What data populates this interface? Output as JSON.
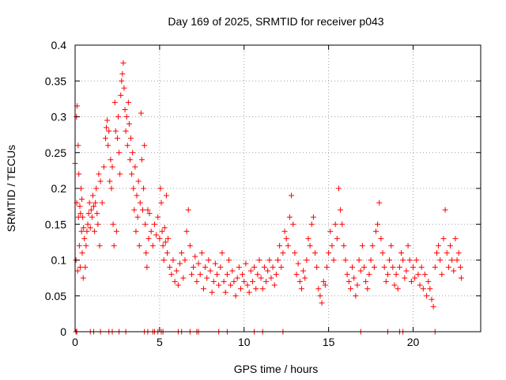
{
  "chart_data": {
    "type": "scatter",
    "title": "Day 169 of 2025, SRMTID for receiver p043",
    "xlabel": "GPS time / hours",
    "ylabel": "SRMTID / TECUs",
    "xlim": [
      0,
      24
    ],
    "ylim": [
      0,
      0.4
    ],
    "xticks": [
      0,
      5,
      10,
      15,
      20
    ],
    "xtick_labels": [
      "0",
      "5",
      "10",
      "15",
      "20"
    ],
    "yticks": [
      0,
      0.05,
      0.1,
      0.15,
      0.2,
      0.25,
      0.3,
      0.35,
      0.4
    ],
    "ytick_labels": [
      "0",
      "0.05",
      "0.1",
      "0.15",
      "0.2",
      "0.25",
      "0.3",
      "0.35",
      "0.4"
    ],
    "grid": true,
    "marker": "plus",
    "color": "#ff0000",
    "series": [
      {
        "name": "SRMTID",
        "points": [
          [
            0.0,
            0.235
          ],
          [
            0.05,
            0.1
          ],
          [
            0.08,
            0.3
          ],
          [
            0.1,
            0.18
          ],
          [
            0.12,
            0.315
          ],
          [
            0.15,
            0.085
          ],
          [
            0.18,
            0.26
          ],
          [
            0.2,
            0.16
          ],
          [
            0.22,
            0.22
          ],
          [
            0.25,
            0.12
          ],
          [
            0.28,
            0.175
          ],
          [
            0.3,
            0.09
          ],
          [
            0.32,
            0.165
          ],
          [
            0.35,
            0.2
          ],
          [
            0.38,
            0.14
          ],
          [
            0.4,
            0.185
          ],
          [
            0.42,
            0.11
          ],
          [
            0.45,
            0.16
          ],
          [
            0.48,
            0.075
          ],
          [
            0.5,
            0.145
          ],
          [
            0.55,
            0.13
          ],
          [
            0.6,
            0.09
          ],
          [
            0.65,
            0.12
          ],
          [
            0.7,
            0.14
          ],
          [
            0.75,
            0.15
          ],
          [
            0.8,
            0.165
          ],
          [
            0.85,
            0.18
          ],
          [
            0.9,
            0.145
          ],
          [
            0.95,
            0.17
          ],
          [
            1.0,
            0.16
          ],
          [
            1.05,
            0.19
          ],
          [
            1.1,
            0.175
          ],
          [
            1.15,
            0.14
          ],
          [
            1.2,
            0.18
          ],
          [
            1.25,
            0.2
          ],
          [
            1.3,
            0.165
          ],
          [
            1.35,
            0.15
          ],
          [
            1.4,
            0.22
          ],
          [
            1.45,
            0.12
          ],
          [
            1.5,
            0.21
          ],
          [
            1.6,
            0.18
          ],
          [
            1.7,
            0.23
          ],
          [
            1.8,
            0.27
          ],
          [
            1.85,
            0.285
          ],
          [
            1.9,
            0.295
          ],
          [
            1.95,
            0.26
          ],
          [
            2.0,
            0.28
          ],
          [
            2.05,
            0.21
          ],
          [
            2.1,
            0.24
          ],
          [
            2.15,
            0.2
          ],
          [
            2.2,
            0.23
          ],
          [
            2.25,
            0.15
          ],
          [
            2.3,
            0.12
          ],
          [
            2.35,
            0.32
          ],
          [
            2.4,
            0.28
          ],
          [
            2.45,
            0.14
          ],
          [
            2.5,
            0.27
          ],
          [
            2.55,
            0.3
          ],
          [
            2.6,
            0.25
          ],
          [
            2.65,
            0.22
          ],
          [
            2.7,
            0.33
          ],
          [
            2.75,
            0.35
          ],
          [
            2.8,
            0.36
          ],
          [
            2.85,
            0.375
          ],
          [
            2.9,
            0.34
          ],
          [
            2.95,
            0.31
          ],
          [
            3.0,
            0.28
          ],
          [
            3.05,
            0.3
          ],
          [
            3.1,
            0.26
          ],
          [
            3.15,
            0.32
          ],
          [
            3.2,
            0.29
          ],
          [
            3.25,
            0.24
          ],
          [
            3.3,
            0.27
          ],
          [
            3.35,
            0.22
          ],
          [
            3.4,
            0.25
          ],
          [
            3.45,
            0.2
          ],
          [
            3.5,
            0.17
          ],
          [
            3.55,
            0.23
          ],
          [
            3.6,
            0.14
          ],
          [
            3.65,
            0.19
          ],
          [
            3.7,
            0.16
          ],
          [
            3.75,
            0.21
          ],
          [
            3.8,
            0.12
          ],
          [
            3.85,
            0.18
          ],
          [
            3.9,
            0.305
          ],
          [
            3.95,
            0.24
          ],
          [
            4.0,
            0.17
          ],
          [
            4.05,
            0.2
          ],
          [
            4.1,
            0.26
          ],
          [
            4.15,
            0.15
          ],
          [
            4.2,
            0.11
          ],
          [
            4.25,
            0.09
          ],
          [
            4.3,
            0.17
          ],
          [
            4.35,
            0.13
          ],
          [
            4.4,
            0.165
          ],
          [
            4.5,
            0.14
          ],
          [
            4.6,
            0.12
          ],
          [
            4.7,
            0.15
          ],
          [
            4.8,
            0.135
          ],
          [
            4.9,
            0.16
          ],
          [
            5.0,
            0.13
          ],
          [
            5.05,
            0.2
          ],
          [
            5.1,
            0.18
          ],
          [
            5.15,
            0.14
          ],
          [
            5.2,
            0.12
          ],
          [
            5.25,
            0.1
          ],
          [
            5.3,
            0.145
          ],
          [
            5.35,
            0.125
          ],
          [
            5.4,
            0.19
          ],
          [
            5.45,
            0.11
          ],
          [
            5.5,
            0.13
          ],
          [
            5.6,
            0.09
          ],
          [
            5.7,
            0.08
          ],
          [
            5.8,
            0.1
          ],
          [
            5.9,
            0.07
          ],
          [
            6.0,
            0.085
          ],
          [
            6.1,
            0.065
          ],
          [
            6.2,
            0.095
          ],
          [
            6.3,
            0.11
          ],
          [
            6.4,
            0.075
          ],
          [
            6.5,
            0.1
          ],
          [
            6.6,
            0.14
          ],
          [
            6.7,
            0.17
          ],
          [
            6.8,
            0.12
          ],
          [
            6.9,
            0.08
          ],
          [
            7.0,
            0.09
          ],
          [
            7.1,
            0.105
          ],
          [
            7.2,
            0.07
          ],
          [
            7.3,
            0.095
          ],
          [
            7.4,
            0.08
          ],
          [
            7.5,
            0.11
          ],
          [
            7.6,
            0.06
          ],
          [
            7.7,
            0.09
          ],
          [
            7.8,
            0.075
          ],
          [
            7.9,
            0.1
          ],
          [
            8.0,
            0.085
          ],
          [
            8.1,
            0.055
          ],
          [
            8.2,
            0.07
          ],
          [
            8.3,
            0.095
          ],
          [
            8.4,
            0.08
          ],
          [
            8.5,
            0.065
          ],
          [
            8.6,
            0.09
          ],
          [
            8.7,
            0.11
          ],
          [
            8.8,
            0.07
          ],
          [
            8.9,
            0.055
          ],
          [
            9.0,
            0.08
          ],
          [
            9.1,
            0.1
          ],
          [
            9.2,
            0.065
          ],
          [
            9.3,
            0.085
          ],
          [
            9.4,
            0.07
          ],
          [
            9.5,
            0.05
          ],
          [
            9.6,
            0.075
          ],
          [
            9.7,
            0.09
          ],
          [
            9.8,
            0.06
          ],
          [
            9.9,
            0.08
          ],
          [
            10.0,
            0.07
          ],
          [
            10.1,
            0.095
          ],
          [
            10.2,
            0.065
          ],
          [
            10.3,
            0.055
          ],
          [
            10.4,
            0.085
          ],
          [
            10.5,
            0.07
          ],
          [
            10.6,
            0.09
          ],
          [
            10.7,
            0.06
          ],
          [
            10.8,
            0.08
          ],
          [
            10.9,
            0.1
          ],
          [
            11.0,
            0.075
          ],
          [
            11.1,
            0.06
          ],
          [
            11.2,
            0.09
          ],
          [
            11.3,
            0.07
          ],
          [
            11.4,
            0.085
          ],
          [
            11.5,
            0.1
          ],
          [
            11.6,
            0.075
          ],
          [
            11.7,
            0.09
          ],
          [
            11.8,
            0.065
          ],
          [
            11.9,
            0.08
          ],
          [
            12.0,
            0.1
          ],
          [
            12.1,
            0.12
          ],
          [
            12.2,
            0.09
          ],
          [
            12.3,
            0.11
          ],
          [
            12.4,
            0.14
          ],
          [
            12.5,
            0.13
          ],
          [
            12.6,
            0.12
          ],
          [
            12.7,
            0.16
          ],
          [
            12.8,
            0.19
          ],
          [
            12.9,
            0.15
          ],
          [
            13.0,
            0.11
          ],
          [
            13.1,
            0.08
          ],
          [
            13.2,
            0.095
          ],
          [
            13.3,
            0.07
          ],
          [
            13.4,
            0.06
          ],
          [
            13.5,
            0.085
          ],
          [
            13.6,
            0.075
          ],
          [
            13.7,
            0.1
          ],
          [
            13.8,
            0.13
          ],
          [
            13.9,
            0.12
          ],
          [
            14.0,
            0.15
          ],
          [
            14.1,
            0.16
          ],
          [
            14.2,
            0.11
          ],
          [
            14.3,
            0.09
          ],
          [
            14.4,
            0.06
          ],
          [
            14.5,
            0.05
          ],
          [
            14.6,
            0.04
          ],
          [
            14.7,
            0.07
          ],
          [
            14.8,
            0.065
          ],
          [
            14.9,
            0.09
          ],
          [
            15.0,
            0.11
          ],
          [
            15.1,
            0.14
          ],
          [
            15.2,
            0.12
          ],
          [
            15.3,
            0.1
          ],
          [
            15.4,
            0.15
          ],
          [
            15.5,
            0.13
          ],
          [
            15.6,
            0.2
          ],
          [
            15.7,
            0.17
          ],
          [
            15.8,
            0.15
          ],
          [
            15.9,
            0.12
          ],
          [
            16.0,
            0.1
          ],
          [
            16.1,
            0.08
          ],
          [
            16.2,
            0.07
          ],
          [
            16.3,
            0.06
          ],
          [
            16.4,
            0.09
          ],
          [
            16.5,
            0.075
          ],
          [
            16.6,
            0.05
          ],
          [
            16.7,
            0.065
          ],
          [
            16.8,
            0.1
          ],
          [
            16.9,
            0.085
          ],
          [
            17.0,
            0.12
          ],
          [
            17.1,
            0.09
          ],
          [
            17.2,
            0.07
          ],
          [
            17.3,
            0.06
          ],
          [
            17.4,
            0.08
          ],
          [
            17.5,
            0.1
          ],
          [
            17.6,
            0.12
          ],
          [
            17.7,
            0.09
          ],
          [
            17.8,
            0.14
          ],
          [
            17.9,
            0.15
          ],
          [
            18.0,
            0.18
          ],
          [
            18.1,
            0.13
          ],
          [
            18.2,
            0.11
          ],
          [
            18.3,
            0.09
          ],
          [
            18.4,
            0.07
          ],
          [
            18.5,
            0.08
          ],
          [
            18.6,
            0.1
          ],
          [
            18.7,
            0.12
          ],
          [
            18.8,
            0.09
          ],
          [
            18.9,
            0.065
          ],
          [
            19.0,
            0.08
          ],
          [
            19.1,
            0.06
          ],
          [
            19.2,
            0.09
          ],
          [
            19.3,
            0.11
          ],
          [
            19.4,
            0.1
          ],
          [
            19.5,
            0.075
          ],
          [
            19.6,
            0.085
          ],
          [
            19.7,
            0.12
          ],
          [
            19.8,
            0.1
          ],
          [
            19.9,
            0.07
          ],
          [
            20.0,
            0.09
          ],
          [
            20.1,
            0.075
          ],
          [
            20.2,
            0.1
          ],
          [
            20.3,
            0.08
          ],
          [
            20.4,
            0.065
          ],
          [
            20.5,
            0.09
          ],
          [
            20.6,
            0.06
          ],
          [
            20.7,
            0.08
          ],
          [
            20.8,
            0.05
          ],
          [
            20.9,
            0.07
          ],
          [
            21.0,
            0.06
          ],
          [
            21.1,
            0.045
          ],
          [
            21.2,
            0.035
          ],
          [
            21.3,
            0.09
          ],
          [
            21.4,
            0.11
          ],
          [
            21.5,
            0.12
          ],
          [
            21.6,
            0.1
          ],
          [
            21.7,
            0.08
          ],
          [
            21.8,
            0.13
          ],
          [
            21.9,
            0.17
          ],
          [
            22.0,
            0.11
          ],
          [
            22.1,
            0.09
          ],
          [
            22.2,
            0.12
          ],
          [
            22.3,
            0.1
          ],
          [
            22.4,
            0.085
          ],
          [
            22.5,
            0.13
          ],
          [
            22.6,
            0.1
          ],
          [
            22.7,
            0.11
          ],
          [
            22.8,
            0.09
          ],
          [
            22.85,
            0.075
          ]
        ],
        "zero_points": [
          0.05,
          0.1,
          0.9,
          1.1,
          1.5,
          2.0,
          2.2,
          2.6,
          3.0,
          4.1,
          4.3,
          4.6,
          4.7,
          4.9,
          5.1,
          5.2,
          6.1,
          6.3,
          6.8,
          7.2,
          7.3,
          8.5,
          9.0,
          10.6,
          11.1,
          12.3,
          16.9,
          18.5,
          19.2,
          19.4,
          21.3
        ]
      }
    ]
  }
}
